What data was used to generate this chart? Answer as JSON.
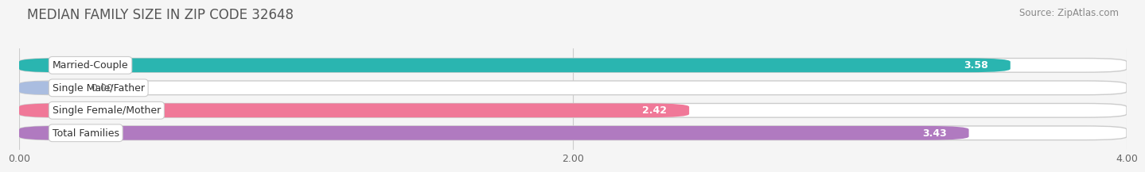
{
  "title": "MEDIAN FAMILY SIZE IN ZIP CODE 32648",
  "source": "Source: ZipAtlas.com",
  "categories": [
    "Married-Couple",
    "Single Male/Father",
    "Single Female/Mother",
    "Total Families"
  ],
  "values": [
    3.58,
    0.0,
    2.42,
    3.43
  ],
  "bar_colors": [
    "#2ab5b0",
    "#aabde0",
    "#f07898",
    "#b07ac0"
  ],
  "xlim": [
    0,
    4.0
  ],
  "xticks": [
    0.0,
    2.0,
    4.0
  ],
  "xtick_labels": [
    "0.00",
    "2.00",
    "4.00"
  ],
  "background_color": "#f5f5f5",
  "bar_bg_color": "#e8e8e8",
  "bar_bg_edge_color": "#d8d8d8",
  "title_fontsize": 12,
  "source_fontsize": 8.5,
  "label_fontsize": 9,
  "value_fontsize": 9,
  "bar_height": 0.62,
  "value_zero_bar_width": 0.18
}
